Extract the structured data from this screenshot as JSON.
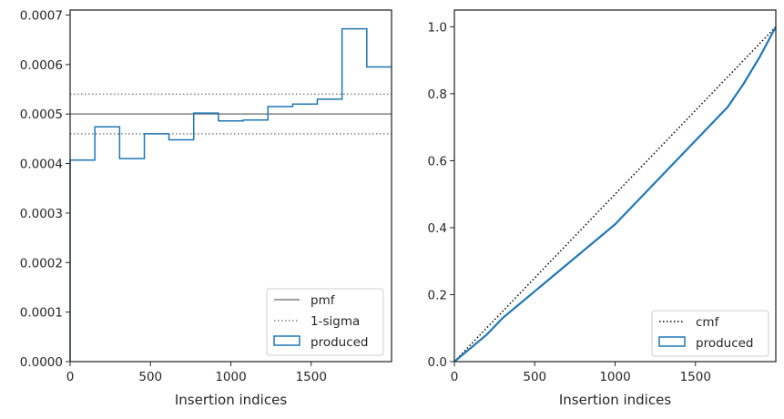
{
  "chart_data": [
    {
      "type": "line",
      "xlabel": "Insertion indices",
      "xlim": [
        0,
        2000
      ],
      "ylim": [
        0,
        0.00071
      ],
      "x_ticks": [
        0,
        500,
        1000,
        1500
      ],
      "y_ticks": [
        0,
        0.0001,
        0.0002,
        0.0003,
        0.0004,
        0.0005,
        0.0006,
        0.0007
      ],
      "x_tick_labels": [
        "0",
        "500",
        "1000",
        "1500"
      ],
      "y_tick_labels": [
        "0.0000",
        "0.0001",
        "0.0002",
        "0.0003",
        "0.0004",
        "0.0005",
        "0.0006",
        "0.0007"
      ],
      "pmf": 0.0005,
      "sigma_upper": 0.00054,
      "sigma_lower": 0.00046,
      "produced": {
        "bin_edges": [
          0,
          154,
          308,
          462,
          615,
          769,
          923,
          1077,
          1231,
          1385,
          1538,
          1692,
          1846,
          2000
        ],
        "values": [
          0.000407,
          0.000474,
          0.00041,
          0.00046,
          0.000448,
          0.000502,
          0.000486,
          0.000488,
          0.000515,
          0.00052,
          0.00053,
          0.000672,
          0.000595
        ]
      },
      "legend": {
        "position": "lower-right",
        "entries": [
          {
            "label": "pmf",
            "style": "solid",
            "color": "#808080"
          },
          {
            "label": "1-sigma",
            "style": "dotted",
            "color": "#808080"
          },
          {
            "label": "produced",
            "style": "step",
            "color": "#1f77b4"
          }
        ]
      },
      "grid": false
    },
    {
      "type": "line",
      "xlabel": "Insertion indices",
      "xlim": [
        0,
        2000
      ],
      "ylim": [
        0,
        1.05
      ],
      "x_ticks": [
        0,
        500,
        1000,
        1500
      ],
      "y_ticks": [
        0,
        0.2,
        0.4,
        0.6,
        0.8,
        1.0
      ],
      "x_tick_labels": [
        "0",
        "500",
        "1000",
        "1500"
      ],
      "y_tick_labels": [
        "0.0",
        "0.2",
        "0.4",
        "0.6",
        "0.8",
        "1.0"
      ],
      "cmf": {
        "x": [
          0,
          2000
        ],
        "y": [
          0,
          1
        ]
      },
      "produced": {
        "x": [
          0,
          50,
          100,
          200,
          300,
          400,
          500,
          600,
          700,
          800,
          900,
          1000,
          1100,
          1200,
          1300,
          1400,
          1500,
          1600,
          1700,
          1800,
          1900,
          2000
        ],
        "y": [
          0,
          0.02,
          0.04,
          0.08,
          0.13,
          0.17,
          0.21,
          0.25,
          0.29,
          0.33,
          0.37,
          0.41,
          0.46,
          0.51,
          0.56,
          0.61,
          0.66,
          0.71,
          0.76,
          0.83,
          0.91,
          1.0
        ]
      },
      "legend": {
        "position": "lower-right",
        "entries": [
          {
            "label": "cmf",
            "style": "dotted",
            "color": "#000000"
          },
          {
            "label": "produced",
            "style": "step",
            "color": "#1f77b4"
          }
        ]
      },
      "grid": false
    }
  ]
}
